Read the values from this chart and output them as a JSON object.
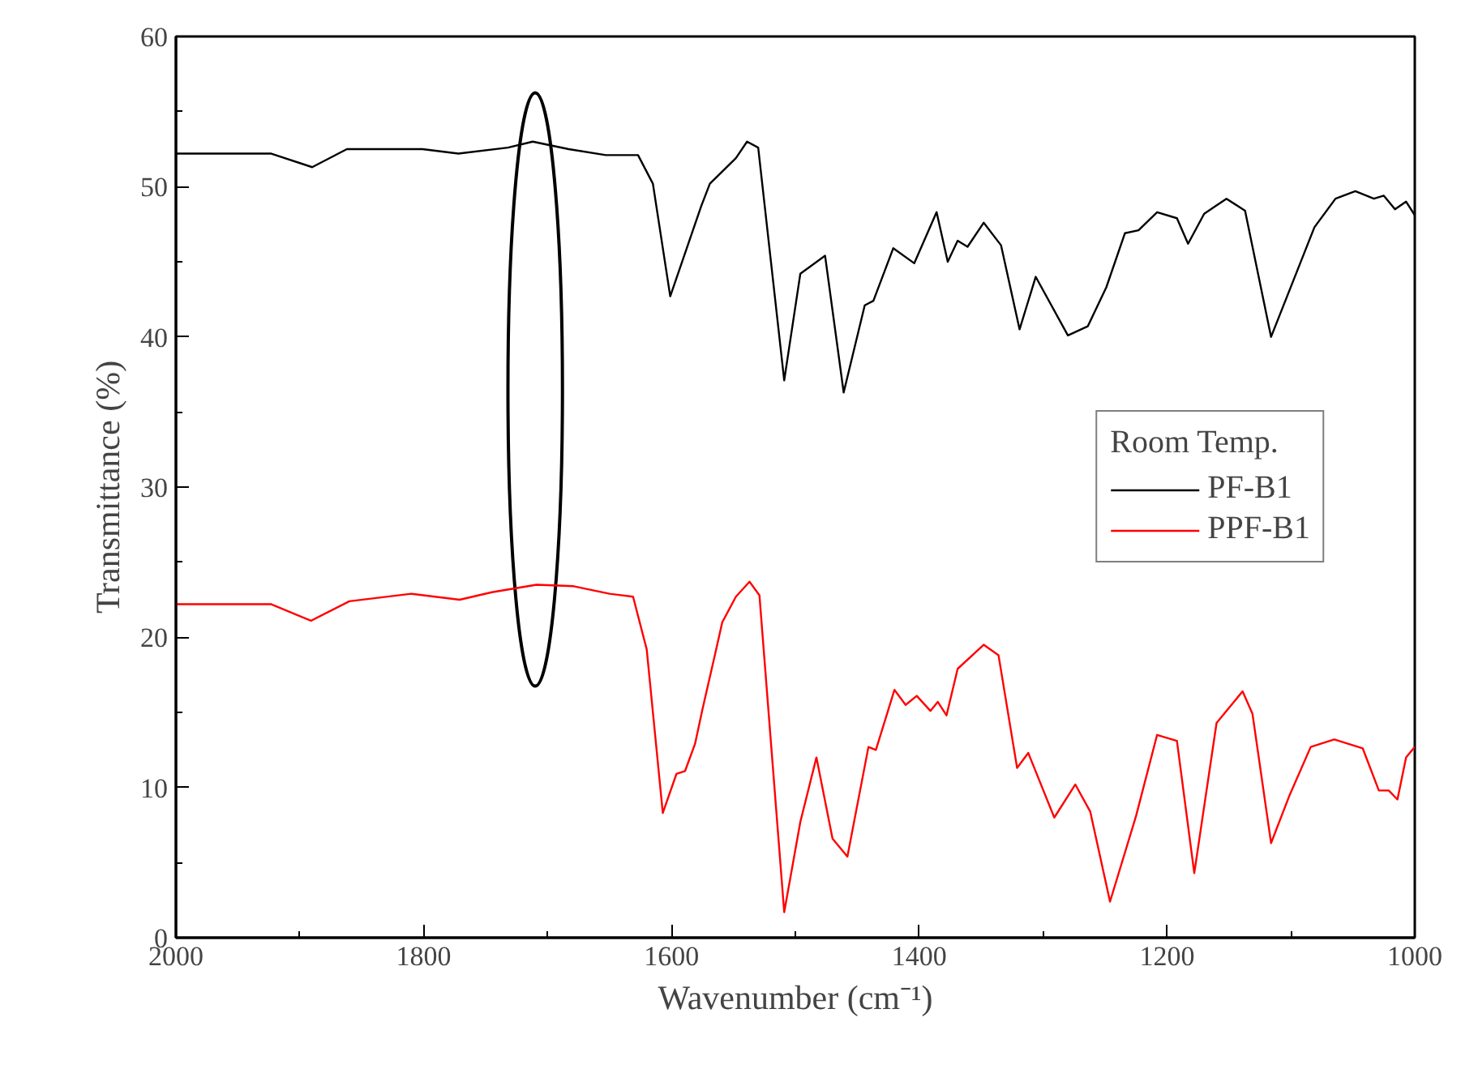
{
  "chart_data": {
    "type": "line",
    "xlabel": "Wavenumber (cm⁻¹)",
    "ylabel": "Transmittance (%)",
    "legend_title": "Room Temp.",
    "legend": "right",
    "grid": false,
    "marker": "none",
    "line_style": "solid",
    "xlim": [
      2000,
      1000
    ],
    "ylim": [
      0,
      60
    ],
    "xticks": [
      2000,
      1800,
      1600,
      1400,
      1200,
      1000
    ],
    "yticks": [
      0,
      10,
      20,
      30,
      40,
      50,
      60
    ],
    "series": [
      {
        "name": "PF-B1",
        "color": "#000000",
        "x": [
          2000,
          1923,
          1890,
          1862,
          1801,
          1772,
          1732,
          1712,
          1683,
          1653,
          1627,
          1615,
          1601,
          1576,
          1569,
          1548,
          1539,
          1530,
          1509,
          1496,
          1476,
          1461,
          1444,
          1437,
          1421,
          1404,
          1386,
          1377,
          1369,
          1361,
          1348,
          1334,
          1319,
          1306,
          1280,
          1264,
          1249,
          1234,
          1223,
          1208,
          1192,
          1183,
          1170,
          1152,
          1137,
          1116,
          1081,
          1064,
          1048,
          1033,
          1025,
          1016,
          1007,
          1000
        ],
        "values": [
          52.2,
          52.2,
          51.3,
          52.5,
          52.5,
          52.2,
          52.6,
          53.0,
          52.5,
          52.1,
          52.1,
          50.2,
          42.7,
          48.7,
          50.2,
          51.9,
          53.0,
          52.6,
          37.1,
          44.2,
          45.4,
          36.3,
          42.1,
          42.4,
          45.9,
          44.9,
          48.3,
          45.0,
          46.4,
          46.0,
          47.6,
          46.1,
          40.5,
          44.0,
          40.1,
          40.7,
          43.3,
          46.9,
          47.1,
          48.3,
          47.9,
          46.2,
          48.2,
          49.2,
          48.4,
          40.0,
          47.3,
          49.2,
          49.7,
          49.2,
          49.4,
          48.5,
          49.0,
          48.1
        ]
      },
      {
        "name": "PPF-B1",
        "color": "#ff0000",
        "x": [
          2000,
          1923,
          1891,
          1860,
          1810,
          1771,
          1745,
          1709,
          1679,
          1650,
          1631,
          1620,
          1607,
          1596,
          1589,
          1581,
          1575,
          1565,
          1559,
          1548,
          1537,
          1529,
          1509,
          1496,
          1483,
          1470,
          1458,
          1441,
          1435,
          1420,
          1411,
          1402,
          1391,
          1385,
          1378,
          1369,
          1348,
          1336,
          1321,
          1312,
          1291,
          1274,
          1262,
          1246,
          1225,
          1208,
          1192,
          1178,
          1160,
          1139,
          1131,
          1116,
          1101,
          1084,
          1065,
          1042,
          1029,
          1021,
          1014,
          1007,
          1000
        ],
        "values": [
          22.2,
          22.2,
          21.1,
          22.4,
          22.9,
          22.5,
          23.0,
          23.5,
          23.4,
          22.9,
          22.7,
          19.2,
          8.3,
          10.9,
          11.1,
          12.9,
          15.2,
          18.8,
          21.0,
          22.7,
          23.7,
          22.8,
          1.7,
          7.7,
          12.0,
          6.6,
          5.4,
          12.7,
          12.5,
          16.5,
          15.5,
          16.1,
          15.1,
          15.7,
          14.8,
          17.9,
          19.5,
          18.8,
          11.3,
          12.3,
          8.0,
          10.2,
          8.4,
          2.4,
          8.1,
          13.5,
          13.1,
          4.3,
          14.3,
          16.4,
          14.9,
          6.3,
          9.5,
          12.7,
          13.2,
          12.6,
          9.8,
          9.8,
          9.2,
          12.0,
          12.7
        ]
      }
    ]
  }
}
